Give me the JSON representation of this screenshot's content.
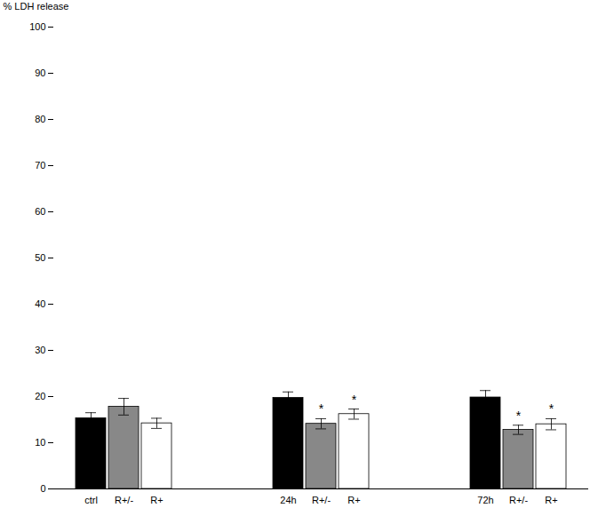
{
  "chart_data": {
    "type": "bar",
    "categories": [
      "ctrl",
      "R+/-",
      "R+",
      "24h",
      "R+/-",
      "R+",
      "72h",
      "R+/-",
      "R+"
    ],
    "values": [
      15.3,
      17.8,
      14.2,
      19.7,
      14.1,
      16.2,
      19.8,
      12.8,
      14.0
    ],
    "errors": [
      1.2,
      1.8,
      1.1,
      1.3,
      1.1,
      1.1,
      1.5,
      1.0,
      1.2
    ],
    "colors": [
      "#000000",
      "#888888",
      "#ffffff",
      "#000000",
      "#888888",
      "#ffffff",
      "#000000",
      "#888888",
      "#ffffff"
    ],
    "annotations": [
      {
        "text": "*",
        "index": 4
      },
      {
        "text": "*",
        "index": 5
      },
      {
        "text": "*",
        "index": 7
      },
      {
        "text": "*",
        "index": 8
      }
    ],
    "ylabel": "% LDH release",
    "ylim": [
      0,
      100
    ],
    "yticks": [
      0,
      10,
      20,
      30,
      40,
      50,
      60,
      70,
      80,
      90,
      100
    ],
    "grid": false
  }
}
